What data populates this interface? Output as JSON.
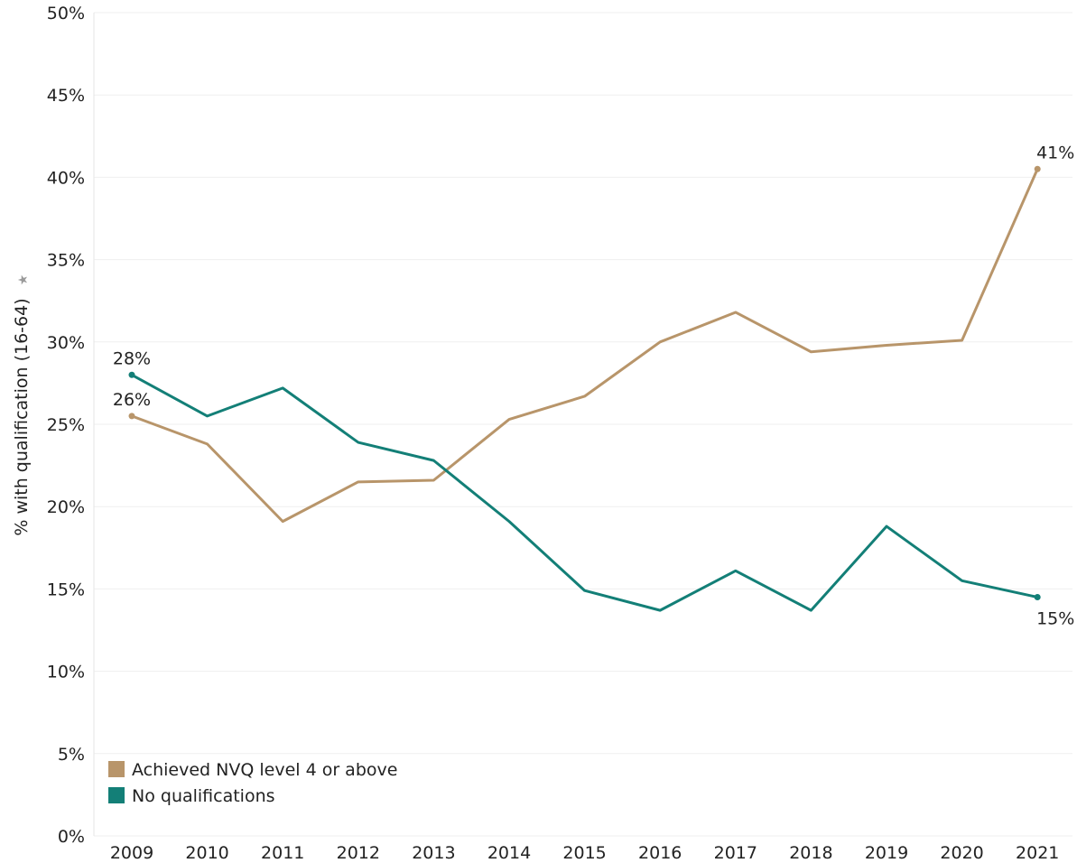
{
  "chart_data": {
    "type": "line",
    "ylabel": "% with qualification (16-64)",
    "xlabel": "",
    "x": [
      "2009",
      "2010",
      "2011",
      "2012",
      "2013",
      "2014",
      "2015",
      "2016",
      "2017",
      "2018",
      "2019",
      "2020",
      "2021"
    ],
    "ylim": [
      0,
      50
    ],
    "yticks": [
      0,
      5,
      10,
      15,
      20,
      25,
      30,
      35,
      40,
      45,
      50
    ],
    "ytick_labels": [
      "0%",
      "5%",
      "10%",
      "15%",
      "20%",
      "25%",
      "30%",
      "35%",
      "40%",
      "45%",
      "50%"
    ],
    "grid": true,
    "legend_position": "bottom-left",
    "series": [
      {
        "name": "Achieved NVQ level 4 or above",
        "color": "#b8956a",
        "values": [
          25.5,
          23.8,
          19.1,
          21.5,
          21.6,
          25.3,
          26.7,
          30.0,
          31.8,
          29.4,
          29.8,
          30.1,
          40.5
        ],
        "point_labels": [
          {
            "index": 0,
            "text": "26%"
          },
          {
            "index": 12,
            "text": "41%"
          }
        ]
      },
      {
        "name": "No qualifications",
        "color": "#137f77",
        "values": [
          28.0,
          25.5,
          27.2,
          23.9,
          22.8,
          19.1,
          14.9,
          13.7,
          16.1,
          13.7,
          18.8,
          15.5,
          14.5
        ],
        "point_labels": [
          {
            "index": 0,
            "text": "28%"
          },
          {
            "index": 12,
            "text": "15%"
          }
        ]
      }
    ],
    "icons": {
      "axis_title_icon": "pin-icon"
    }
  }
}
